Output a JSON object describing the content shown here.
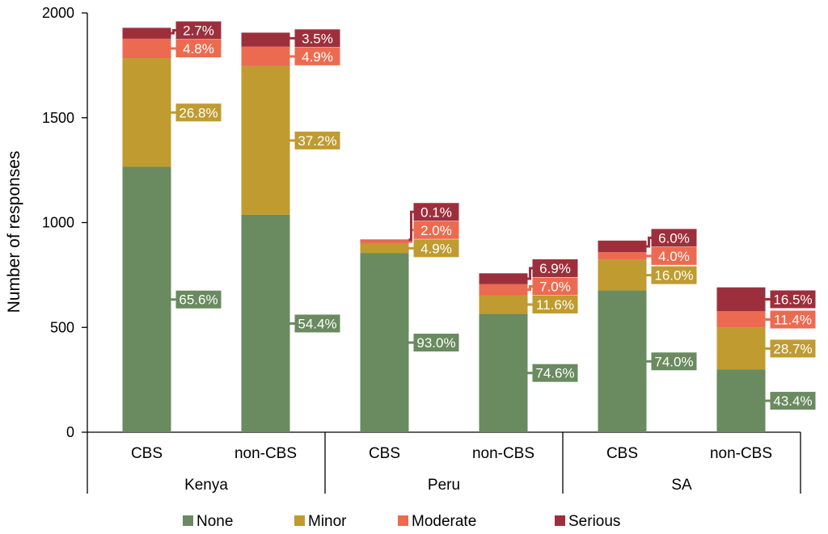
{
  "chart_data": {
    "type": "bar",
    "stacked": true,
    "ylabel": "Number of responses",
    "ylim": [
      0,
      2000
    ],
    "yticks": [
      "0",
      "500",
      "1000",
      "1500",
      "2000"
    ],
    "grid": false,
    "legend_position": "bottom",
    "groups": [
      {
        "name": "Kenya",
        "categories": [
          "CBS",
          "non-CBS"
        ]
      },
      {
        "name": "Peru",
        "categories": [
          "CBS",
          "non-CBS"
        ]
      },
      {
        "name": "SA",
        "categories": [
          "CBS",
          "non-CBS"
        ]
      }
    ],
    "categories": [
      "Kenya CBS",
      "Kenya non-CBS",
      "Peru CBS",
      "Peru non-CBS",
      "SA CBS",
      "SA non-CBS"
    ],
    "series": [
      {
        "name": "None",
        "color": "#6a8a5f",
        "values": [
          1266,
          1037,
          855,
          565,
          676,
          300
        ],
        "labels": [
          "65.6%",
          "54.4%",
          "93.0%",
          "74.6%",
          "74.0%",
          "43.4%"
        ]
      },
      {
        "name": "Minor",
        "color": "#bf9b30",
        "values": [
          518,
          709,
          45,
          88,
          146,
          198
        ],
        "labels": [
          "26.8%",
          "37.2%",
          "4.9%",
          "11.6%",
          "16.0%",
          "28.7%"
        ]
      },
      {
        "name": "Moderate",
        "color": "#ec6b50",
        "values": [
          93,
          93,
          18,
          53,
          37,
          79
        ],
        "labels": [
          "4.8%",
          "4.9%",
          "2.0%",
          "7.0%",
          "4.0%",
          "11.4%"
        ]
      },
      {
        "name": "Serious",
        "color": "#9d2f3c",
        "values": [
          52,
          67,
          1,
          52,
          55,
          114
        ],
        "labels": [
          "2.7%",
          "3.5%",
          "0.1%",
          "6.9%",
          "6.0%",
          "16.5%"
        ]
      }
    ]
  }
}
